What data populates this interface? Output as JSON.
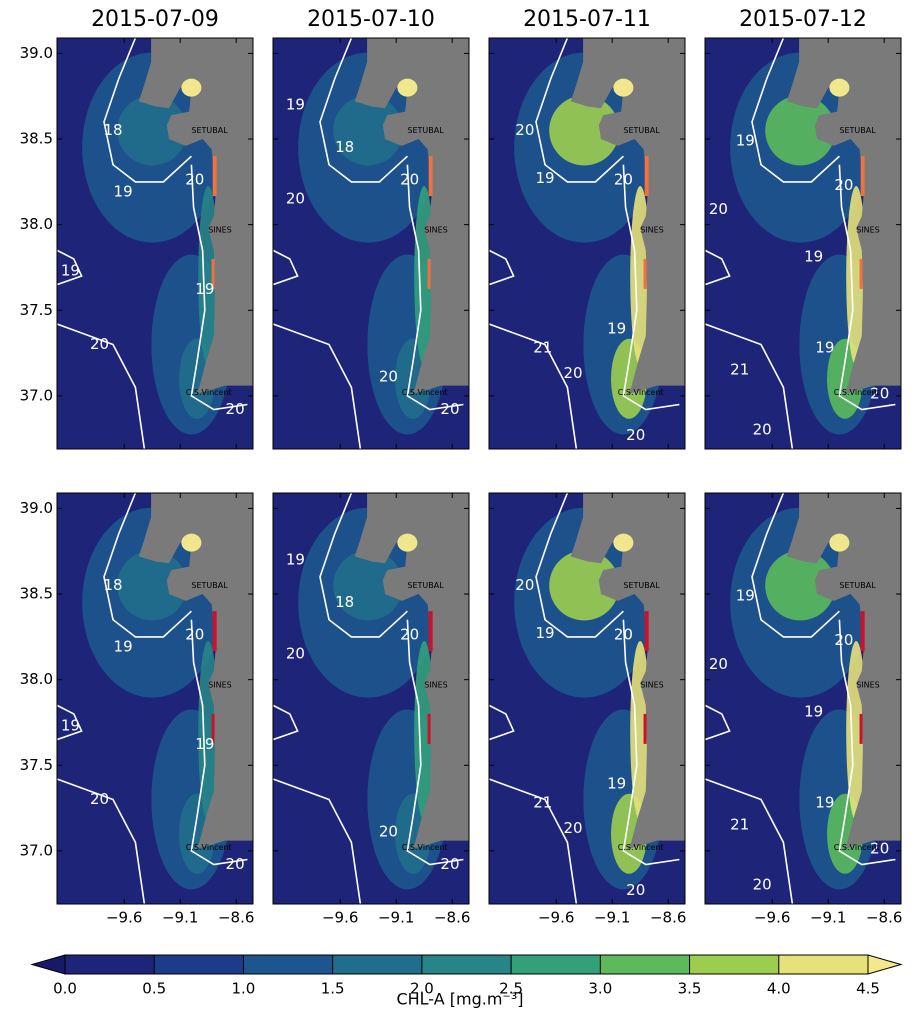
{
  "titles": [
    "2015-07-09",
    "2015-07-10",
    "2015-07-11",
    "2015-07-12"
  ],
  "map": {
    "xlim": [
      -10.2,
      -8.45
    ],
    "ylim": [
      36.69,
      39.09
    ],
    "xticks": [
      {
        "value": -9.6,
        "label": "−9.6"
      },
      {
        "value": -9.1,
        "label": "−9.1"
      },
      {
        "value": -8.6,
        "label": "−8.6"
      }
    ],
    "yticks": [
      {
        "value": 39.0,
        "label": "39.0"
      },
      {
        "value": 38.5,
        "label": "38.5"
      },
      {
        "value": 38.0,
        "label": "38.0"
      },
      {
        "value": 37.5,
        "label": "37.5"
      },
      {
        "value": 37.0,
        "label": "37.0"
      }
    ],
    "places": [
      "SETUBAL",
      "SINES",
      "C.S.Vincent"
    ]
  },
  "rows": [
    {
      "panels": [
        {
          "contour_labels": [
            "18",
            "19",
            "19",
            "20",
            "19",
            "20",
            "20"
          ]
        },
        {
          "contour_labels": [
            "19",
            "18",
            "20",
            "20",
            "20",
            "20"
          ]
        },
        {
          "contour_labels": [
            "20",
            "19",
            "20",
            "21",
            "20",
            "19",
            "20"
          ]
        },
        {
          "contour_labels": [
            "19",
            "20",
            "20",
            "19",
            "19",
            "21",
            "20",
            "20"
          ]
        }
      ]
    },
    {
      "panels": [
        {
          "contour_labels": [
            "18",
            "19",
            "19",
            "20",
            "19",
            "20",
            "20"
          ]
        },
        {
          "contour_labels": [
            "19",
            "18",
            "20",
            "20",
            "20",
            "20"
          ]
        },
        {
          "contour_labels": [
            "20",
            "19",
            "20",
            "21",
            "20",
            "19",
            "20"
          ]
        },
        {
          "contour_labels": [
            "19",
            "20",
            "20",
            "19",
            "19",
            "21",
            "20",
            "20"
          ]
        }
      ]
    }
  ],
  "colorbar": {
    "label": "CHL-A [mg.m⁻³]",
    "ticks": [
      {
        "value": 0,
        "label": "0.0"
      },
      {
        "value": 0.5,
        "label": "0.5"
      },
      {
        "value": 1,
        "label": "1.0"
      },
      {
        "value": 1.5,
        "label": "1.5"
      },
      {
        "value": 2,
        "label": "2.0"
      },
      {
        "value": 2.5,
        "label": "2.5"
      },
      {
        "value": 3,
        "label": "3.0"
      },
      {
        "value": 3.5,
        "label": "3.5"
      },
      {
        "value": 4,
        "label": "4.0"
      },
      {
        "value": 4.5,
        "label": "4.5"
      }
    ],
    "colors": [
      "#1e2478",
      "#1c3c8a",
      "#1d568e",
      "#216d8c",
      "#278487",
      "#33a07a",
      "#5cb95c",
      "#9ccd4f",
      "#e5e27a"
    ],
    "under": "#19186a",
    "over": "#f3e98c"
  }
}
